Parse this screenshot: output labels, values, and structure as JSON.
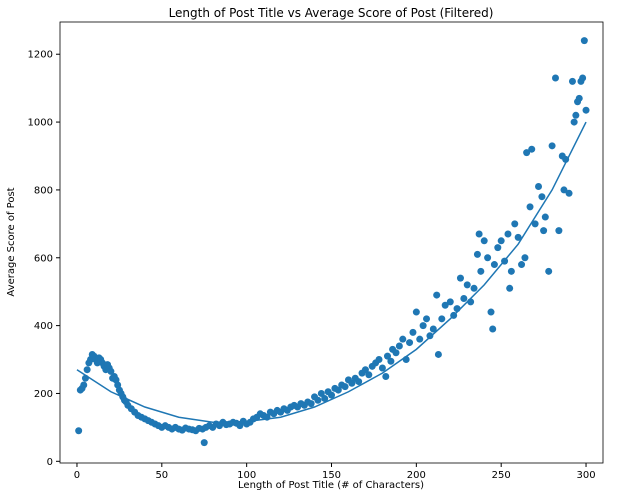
{
  "chart_data": {
    "type": "scatter",
    "title": "Length of Post Title vs Average Score of Post (Filtered)",
    "xlabel": "Length of Post Title (# of Characters)",
    "ylabel": "Average Score of Post",
    "color": "#1f77b4",
    "xlim": [
      -10,
      310
    ],
    "ylim": [
      -5,
      1295
    ],
    "xticks": [
      0,
      50,
      100,
      150,
      200,
      250,
      300
    ],
    "yticks": [
      0,
      200,
      400,
      600,
      800,
      1000,
      1200
    ],
    "x": [
      1,
      2,
      3,
      4,
      5,
      6,
      7,
      8,
      9,
      10,
      11,
      12,
      13,
      14,
      15,
      16,
      17,
      18,
      19,
      20,
      21,
      22,
      23,
      24,
      25,
      26,
      27,
      28,
      29,
      30,
      32,
      34,
      36,
      38,
      40,
      42,
      44,
      46,
      48,
      50,
      52,
      54,
      56,
      58,
      60,
      62,
      64,
      66,
      68,
      70,
      72,
      74,
      75,
      76,
      78,
      80,
      82,
      84,
      86,
      88,
      90,
      92,
      94,
      96,
      98,
      100,
      102,
      104,
      106,
      108,
      110,
      112,
      114,
      116,
      118,
      120,
      122,
      124,
      126,
      128,
      130,
      132,
      134,
      136,
      138,
      140,
      142,
      144,
      146,
      148,
      150,
      152,
      154,
      156,
      158,
      160,
      162,
      164,
      166,
      168,
      170,
      172,
      174,
      176,
      178,
      180,
      182,
      183,
      185,
      186,
      188,
      190,
      192,
      194,
      196,
      198,
      200,
      202,
      204,
      206,
      208,
      210,
      212,
      213,
      215,
      217,
      220,
      222,
      224,
      226,
      228,
      230,
      232,
      234,
      236,
      237,
      238,
      240,
      242,
      244,
      245,
      246,
      248,
      250,
      252,
      254,
      255,
      256,
      258,
      260,
      262,
      264,
      265,
      267,
      268,
      270,
      272,
      274,
      275,
      276,
      278,
      280,
      282,
      284,
      286,
      287,
      288,
      290,
      292,
      293,
      294,
      295,
      296,
      297,
      298,
      299,
      300
    ],
    "values": [
      90,
      210,
      215,
      225,
      245,
      270,
      290,
      300,
      315,
      310,
      300,
      290,
      305,
      300,
      290,
      280,
      270,
      285,
      275,
      265,
      245,
      250,
      240,
      225,
      210,
      200,
      190,
      180,
      175,
      165,
      155,
      145,
      135,
      130,
      125,
      120,
      115,
      110,
      105,
      100,
      105,
      100,
      95,
      100,
      95,
      92,
      98,
      95,
      93,
      90,
      97,
      95,
      55,
      100,
      105,
      100,
      110,
      105,
      115,
      108,
      110,
      115,
      112,
      105,
      118,
      110,
      115,
      125,
      130,
      140,
      135,
      130,
      145,
      140,
      150,
      145,
      155,
      150,
      160,
      165,
      160,
      170,
      165,
      175,
      170,
      190,
      180,
      200,
      185,
      205,
      195,
      215,
      210,
      225,
      220,
      240,
      230,
      245,
      235,
      260,
      270,
      255,
      280,
      290,
      300,
      275,
      250,
      310,
      295,
      330,
      320,
      340,
      360,
      300,
      350,
      380,
      440,
      360,
      400,
      420,
      370,
      390,
      490,
      315,
      420,
      460,
      470,
      430,
      450,
      540,
      480,
      520,
      470,
      510,
      610,
      670,
      560,
      650,
      600,
      440,
      390,
      580,
      630,
      650,
      590,
      670,
      510,
      560,
      700,
      660,
      580,
      600,
      910,
      750,
      920,
      700,
      810,
      780,
      680,
      720,
      560,
      930,
      1130,
      680,
      900,
      800,
      890,
      790,
      1120,
      1000,
      1020,
      1060,
      1070,
      1120,
      1130,
      1240,
      1035
    ],
    "fit": {
      "x": [
        0,
        20,
        40,
        60,
        80,
        100,
        120,
        140,
        160,
        180,
        200,
        220,
        240,
        260,
        280,
        300
      ],
      "values": [
        270,
        205,
        160,
        130,
        115,
        117,
        130,
        160,
        205,
        260,
        330,
        420,
        520,
        640,
        800,
        1000
      ]
    }
  }
}
